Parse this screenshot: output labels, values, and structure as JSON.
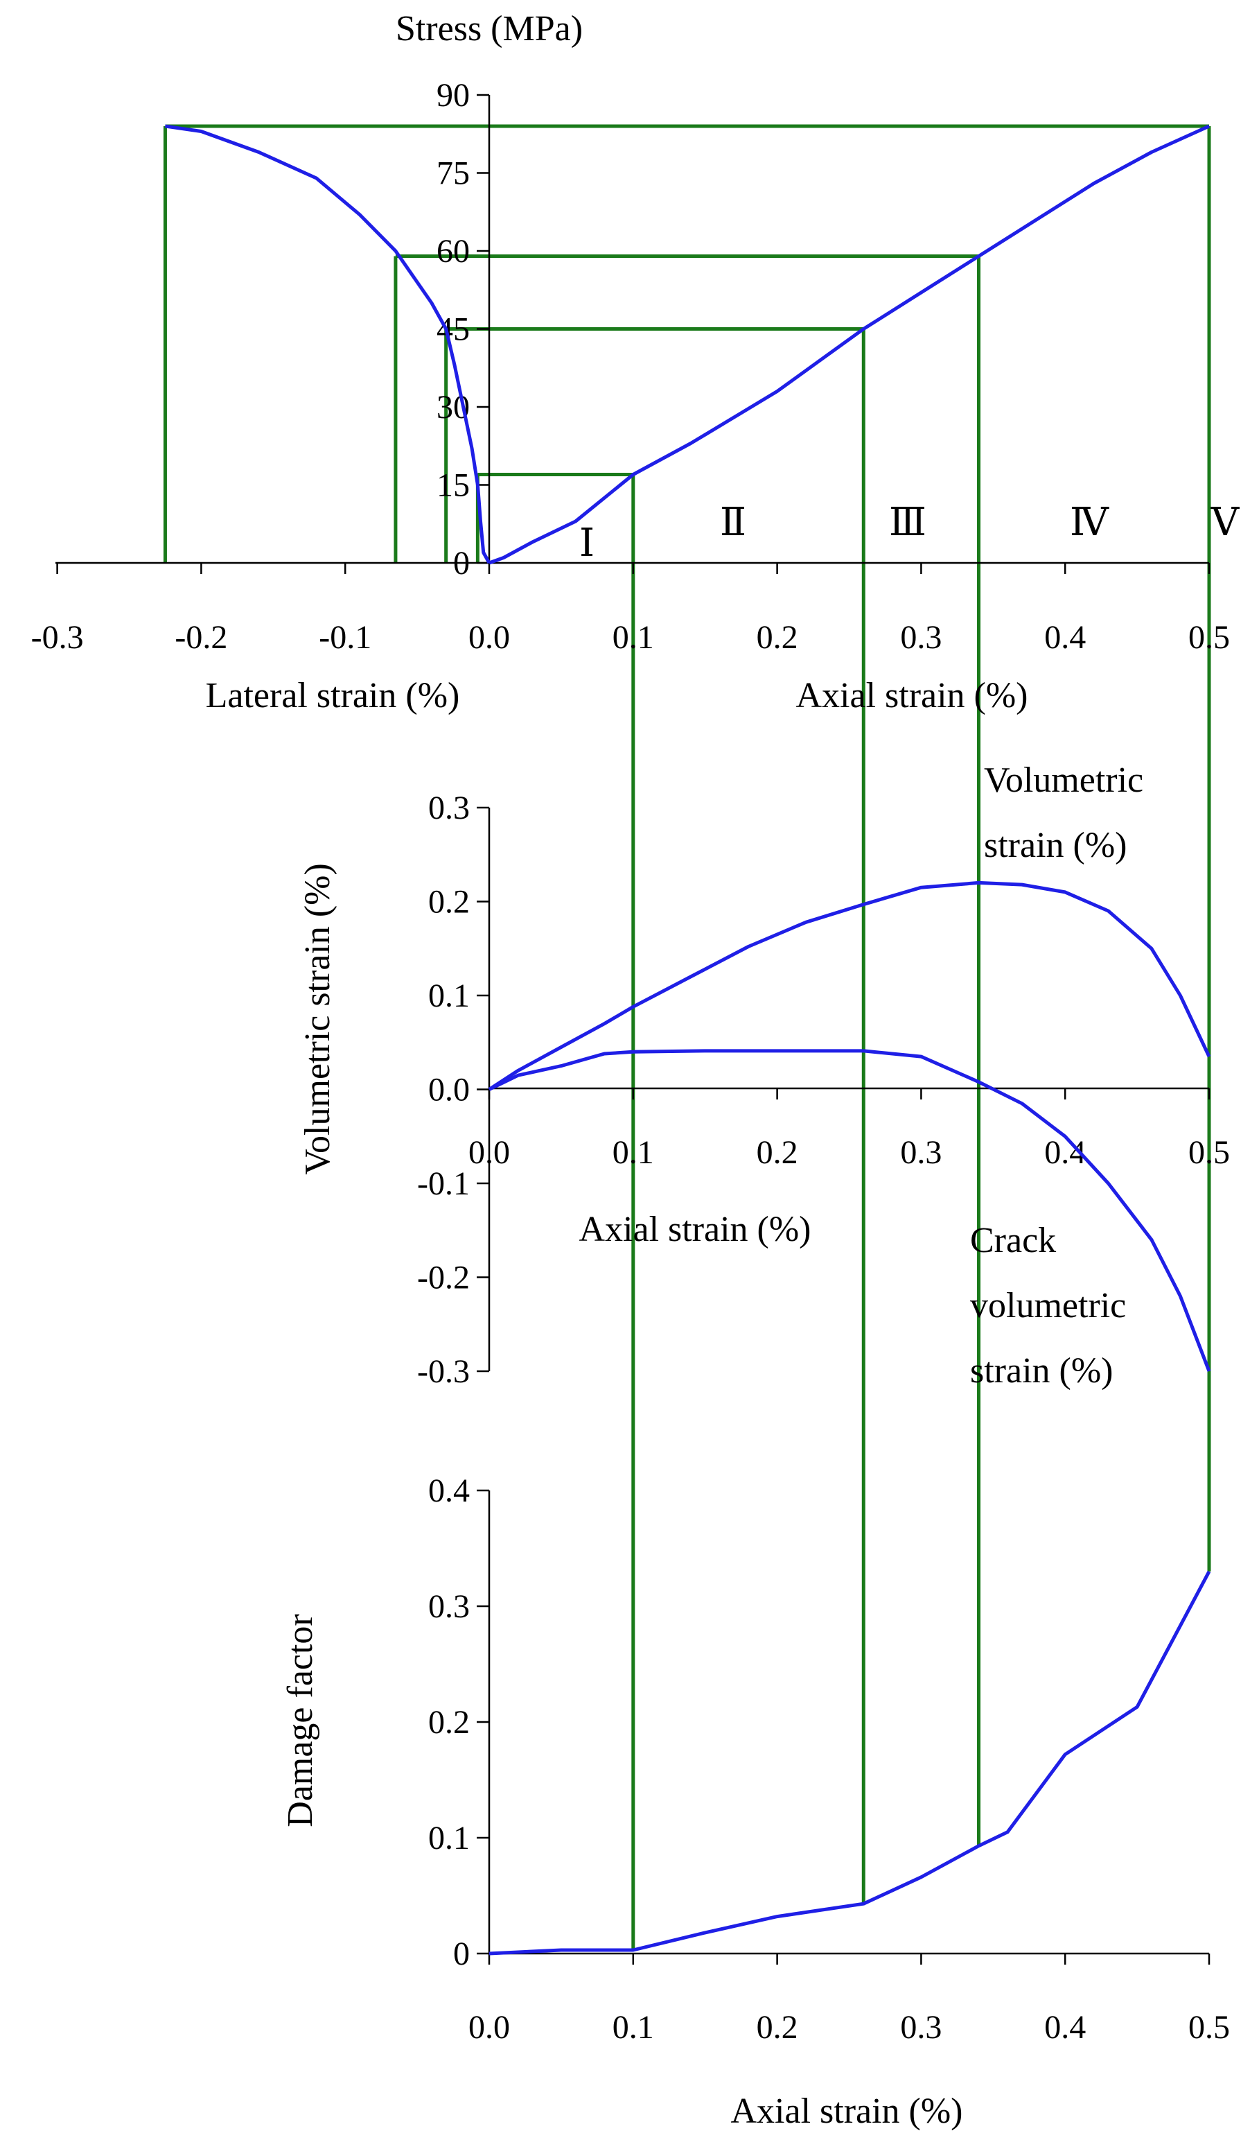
{
  "colors": {
    "curve": "#1f1fe6",
    "guide": "#1a7a1a",
    "axis": "#000000"
  },
  "chart_data": [
    {
      "type": "line",
      "xlabel_left": "Lateral strain (%)",
      "xlabel_right": "Axial strain (%)",
      "ylabel": "Stress (MPa)",
      "xlim": [
        -0.3,
        0.5
      ],
      "ylim": [
        0,
        90
      ],
      "x_ticks": [
        "-0.3",
        "-0.2",
        "-0.1",
        "0.0",
        "0.1",
        "0.2",
        "0.3",
        "0.4",
        "0.5"
      ],
      "y_ticks": [
        "0",
        "15",
        "30",
        "45",
        "60",
        "75",
        "90"
      ],
      "stage_labels": [
        "Ⅰ",
        "Ⅱ",
        "Ⅲ",
        "Ⅳ",
        "Ⅴ"
      ],
      "series": [
        {
          "points": [
            [
              0,
              0
            ],
            [
              0.01,
              1
            ],
            [
              0.03,
              4
            ],
            [
              0.06,
              8
            ],
            [
              0.1,
              17
            ],
            [
              0.14,
              23
            ],
            [
              0.17,
              28
            ],
            [
              0.2,
              33
            ],
            [
              0.23,
              39
            ],
            [
              0.26,
              45
            ],
            [
              0.3,
              52
            ],
            [
              0.34,
              59
            ],
            [
              0.38,
              66
            ],
            [
              0.42,
              73
            ],
            [
              0.46,
              79
            ],
            [
              0.5,
              84
            ]
          ]
        },
        {
          "points": [
            [
              0,
              0
            ],
            [
              -0.004,
              2
            ],
            [
              -0.006,
              8
            ],
            [
              -0.008,
              15
            ],
            [
              -0.012,
              22
            ],
            [
              -0.018,
              30
            ],
            [
              -0.024,
              38
            ],
            [
              -0.03,
              45
            ],
            [
              -0.04,
              50
            ],
            [
              -0.05,
              54
            ],
            [
              -0.065,
              60
            ],
            [
              -0.09,
              67
            ],
            [
              -0.12,
              74
            ],
            [
              -0.16,
              79
            ],
            [
              -0.2,
              83
            ],
            [
              -0.225,
              84
            ]
          ]
        }
      ]
    },
    {
      "type": "line",
      "xlabel": "Axial strain (%)",
      "ylabel": "Volumetric strain (%)",
      "xlim": [
        0,
        0.5
      ],
      "ylim": [
        -0.3,
        0.3
      ],
      "x_ticks": [
        "0.0",
        "0.1",
        "0.2",
        "0.3",
        "0.4",
        "0.5"
      ],
      "y_ticks": [
        "0.3",
        "0.2",
        "0.1",
        "0.0",
        "-0.1",
        "-0.2",
        "-0.3"
      ],
      "series": [
        {
          "name": "Volumetric strain (%)",
          "points": [
            [
              0,
              0
            ],
            [
              0.02,
              0.02
            ],
            [
              0.05,
              0.045
            ],
            [
              0.08,
              0.07
            ],
            [
              0.1,
              0.088
            ],
            [
              0.14,
              0.12
            ],
            [
              0.18,
              0.152
            ],
            [
              0.22,
              0.178
            ],
            [
              0.26,
              0.197
            ],
            [
              0.3,
              0.215
            ],
            [
              0.34,
              0.22
            ],
            [
              0.37,
              0.218
            ],
            [
              0.4,
              0.21
            ],
            [
              0.43,
              0.19
            ],
            [
              0.46,
              0.15
            ],
            [
              0.48,
              0.1
            ],
            [
              0.5,
              0.035
            ]
          ]
        },
        {
          "name": "Crack volumetric strain (%)",
          "points": [
            [
              0,
              0
            ],
            [
              0.02,
              0.015
            ],
            [
              0.05,
              0.025
            ],
            [
              0.08,
              0.038
            ],
            [
              0.1,
              0.04
            ],
            [
              0.15,
              0.041
            ],
            [
              0.2,
              0.041
            ],
            [
              0.26,
              0.041
            ],
            [
              0.3,
              0.035
            ],
            [
              0.34,
              0.008
            ],
            [
              0.37,
              -0.015
            ],
            [
              0.4,
              -0.05
            ],
            [
              0.43,
              -0.1
            ],
            [
              0.46,
              -0.16
            ],
            [
              0.48,
              -0.22
            ],
            [
              0.5,
              -0.3
            ]
          ]
        }
      ]
    },
    {
      "type": "line",
      "xlabel": "Axial strain (%)",
      "ylabel": "Damage factor",
      "xlim": [
        0,
        0.5
      ],
      "ylim": [
        0,
        0.4
      ],
      "x_ticks": [
        "0.0",
        "0.1",
        "0.2",
        "0.3",
        "0.4",
        "0.5"
      ],
      "y_ticks": [
        "0",
        "0.1",
        "0.2",
        "0.3",
        "0.4"
      ],
      "series": [
        {
          "points": [
            [
              0,
              0
            ],
            [
              0.05,
              0.003
            ],
            [
              0.1,
              0.003
            ],
            [
              0.15,
              0.018
            ],
            [
              0.2,
              0.032
            ],
            [
              0.26,
              0.043
            ],
            [
              0.3,
              0.066
            ],
            [
              0.34,
              0.093
            ],
            [
              0.36,
              0.105
            ],
            [
              0.4,
              0.172
            ],
            [
              0.45,
              0.213
            ],
            [
              0.5,
              0.33
            ]
          ]
        }
      ]
    }
  ],
  "guides": {
    "stress_levels": [
      17,
      45,
      59,
      84
    ],
    "axial_strains": [
      0.1,
      0.26,
      0.34,
      0.5
    ],
    "lateral_strains": [
      -0.008,
      -0.03,
      -0.065,
      -0.225
    ]
  }
}
